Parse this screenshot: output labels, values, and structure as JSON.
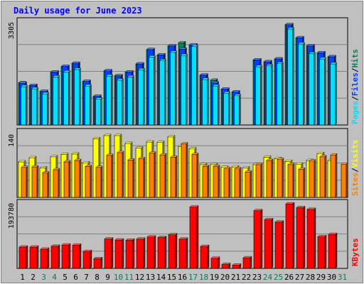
{
  "title": "Daily usage for June 2023",
  "colors": {
    "page_bg": "#c0c0c0",
    "plot_bg": "#c0c0c0",
    "title": "#0000ff",
    "hits": "#00805c",
    "files": "#0040ff",
    "pages": "#00e0ff",
    "visits": "#ffff00",
    "sites": "#ff8000",
    "kbytes": "#ff0000",
    "grid": "#808080",
    "weekend_label": "#00805c",
    "weekday_label": "#000000"
  },
  "labels": {
    "pages": "Pages",
    "files": "Files",
    "hits": "Hits",
    "sites": "Sites",
    "visits": "Visits",
    "kbytes": "KBytes",
    "sep": "/"
  },
  "chart_data": [
    {
      "type": "bar",
      "title": "Daily usage for June 2023",
      "categories": [
        "1",
        "2",
        "3",
        "4",
        "5",
        "6",
        "7",
        "8",
        "9",
        "10",
        "11",
        "12",
        "13",
        "14",
        "15",
        "16",
        "17",
        "18",
        "19",
        "20",
        "21",
        "22",
        "23",
        "24",
        "25",
        "26",
        "27",
        "28",
        "29",
        "30",
        "31"
      ],
      "weekend_days": [
        "3",
        "4",
        "10",
        "11",
        "17",
        "18",
        "24",
        "25",
        "31"
      ],
      "ymax_label": "3305",
      "ylim": [
        0,
        3305
      ],
      "series": [
        {
          "name": "Hits",
          "values": [
            1360,
            1270,
            1080,
            1700,
            1880,
            1980,
            1400,
            920,
            1740,
            1580,
            1700,
            1960,
            2420,
            2250,
            2540,
            2640,
            2570,
            1600,
            1440,
            1150,
            1060,
            0,
            2090,
            2030,
            2120,
            3220,
            2800,
            2540,
            2320,
            2190,
            0
          ]
        },
        {
          "name": "Files",
          "values": [
            1340,
            1270,
            1080,
            1700,
            1880,
            1980,
            1400,
            920,
            1740,
            1580,
            1700,
            1960,
            2420,
            2250,
            2540,
            2430,
            2570,
            1600,
            1350,
            1150,
            1060,
            0,
            2090,
            2030,
            2120,
            3220,
            2800,
            2540,
            2320,
            2190,
            0
          ]
        },
        {
          "name": "Pages",
          "values": [
            1230,
            1160,
            1000,
            1540,
            1700,
            1780,
            1250,
            830,
            1570,
            1440,
            1540,
            1770,
            2180,
            2060,
            2330,
            2230,
            2520,
            1460,
            1250,
            1020,
            940,
            0,
            1870,
            1900,
            1970,
            3080,
            2600,
            2290,
            2120,
            1960,
            0
          ]
        }
      ]
    },
    {
      "type": "bar",
      "categories": [
        "1",
        "2",
        "3",
        "4",
        "5",
        "6",
        "7",
        "8",
        "9",
        "10",
        "11",
        "12",
        "13",
        "14",
        "15",
        "16",
        "17",
        "18",
        "19",
        "20",
        "21",
        "22",
        "23",
        "24",
        "25",
        "26",
        "27",
        "28",
        "29",
        "30",
        "31"
      ],
      "ymax_label": "140",
      "ylim": [
        0,
        140
      ],
      "series": [
        {
          "name": "Visits",
          "values": [
            77,
            86,
            64,
            88,
            93,
            94,
            75,
            127,
            134,
            134,
            117,
            107,
            120,
            119,
            131,
            110,
            105,
            71,
            71,
            65,
            66,
            64,
            71,
            87,
            84,
            78,
            72,
            80,
            95,
            80,
            0
          ]
        },
        {
          "name": "Sites",
          "values": [
            65,
            66,
            53,
            60,
            77,
            80,
            67,
            65,
            91,
            97,
            81,
            84,
            96,
            92,
            87,
            116,
            93,
            67,
            67,
            62,
            62,
            55,
            71,
            80,
            82,
            71,
            61,
            79,
            88,
            92,
            72
          ]
        }
      ]
    },
    {
      "type": "bar",
      "categories": [
        "1",
        "2",
        "3",
        "4",
        "5",
        "6",
        "7",
        "8",
        "9",
        "10",
        "11",
        "12",
        "13",
        "14",
        "15",
        "16",
        "17",
        "18",
        "19",
        "20",
        "21",
        "22",
        "23",
        "24",
        "25",
        "26",
        "27",
        "28",
        "29",
        "30",
        "31"
      ],
      "ymax_label": "193780",
      "ylim": [
        0,
        193780
      ],
      "series": [
        {
          "name": "KBytes",
          "values": [
            63800,
            63800,
            57600,
            66300,
            70100,
            69600,
            50700,
            29100,
            88200,
            85200,
            84700,
            87800,
            94200,
            92600,
            100900,
            87800,
            184000,
            65800,
            30300,
            11800,
            9900,
            31700,
            173000,
            146200,
            138900,
            193500,
            182100,
            177000,
            95300,
            102000,
            0
          ]
        }
      ]
    }
  ]
}
